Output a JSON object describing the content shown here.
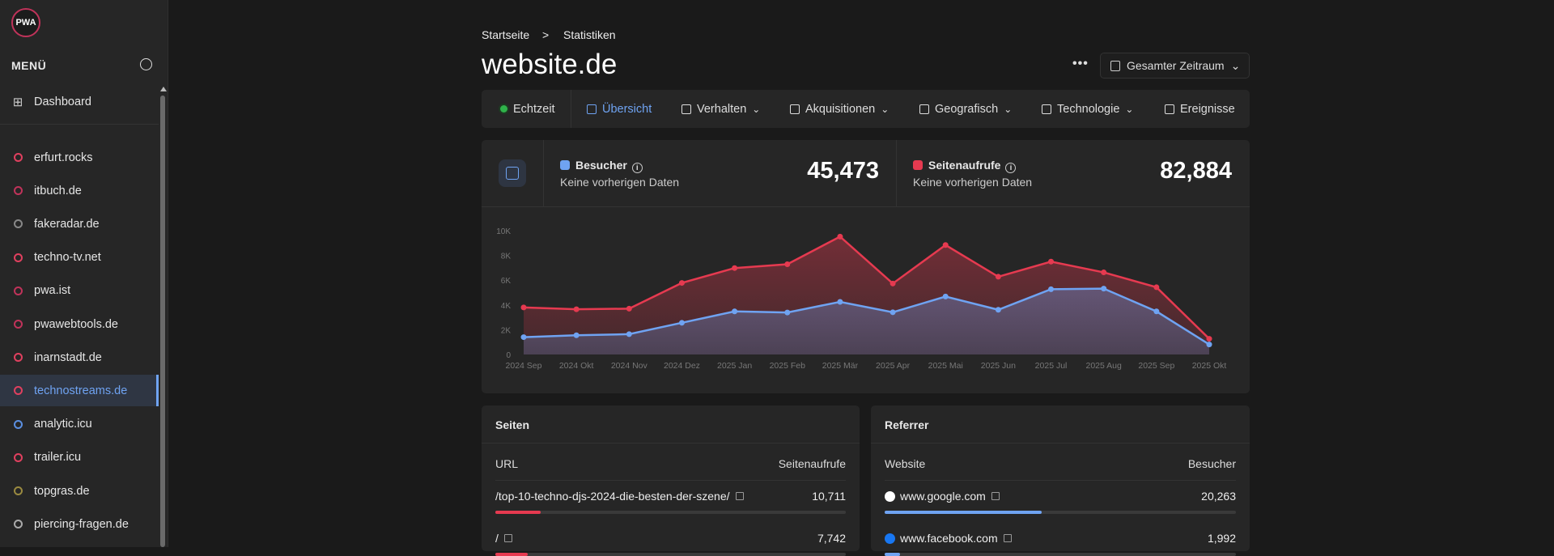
{
  "sidebar": {
    "logo": "PWA.ist",
    "menu_title": "MENÜ",
    "dashboard": "Dashboard",
    "sites": [
      {
        "label": "erfurt.rocks",
        "icon": "pin-icon",
        "color": "#e0405f"
      },
      {
        "label": "itbuch.de",
        "icon": "io-icon",
        "color": "#c0335a"
      },
      {
        "label": "fakeradar.de",
        "icon": "play-circle-icon",
        "color": "#888888"
      },
      {
        "label": "techno-tv.net",
        "icon": "heart-arrow-icon",
        "color": "#e0405f"
      },
      {
        "label": "pwa.ist",
        "icon": "pw-icon",
        "color": "#c0335a"
      },
      {
        "label": "pwawebtools.de",
        "icon": "pw-icon",
        "color": "#c0335a"
      },
      {
        "label": "inarnstadt.de",
        "icon": "pin-icon",
        "color": "#e0405f"
      },
      {
        "label": "technostreams.de",
        "icon": "ts-icon",
        "color": "#e0405f",
        "active": true
      },
      {
        "label": "analytic.icu",
        "icon": "bar-chart-icon",
        "color": "#5b8fe0"
      },
      {
        "label": "trailer.icu",
        "icon": "flag-icon",
        "color": "#e0405f"
      },
      {
        "label": "topgras.de",
        "icon": "grass-icon",
        "color": "#9a8a40"
      },
      {
        "label": "piercing-fragen.de",
        "icon": "ring-icon",
        "color": "#aaaaaa"
      }
    ]
  },
  "breadcrumb": {
    "home": "Startseite",
    "sep": ">",
    "current": "Statistiken"
  },
  "title": "website.de",
  "toolbar": {
    "more": "•••",
    "range": "Gesamter Zeitraum"
  },
  "nav": [
    "Echtzeit",
    "Übersicht",
    "Verhalten",
    "Akquisitionen",
    "Geografisch",
    "Technologie",
    "Ereignisse"
  ],
  "stats": {
    "visitors": {
      "label": "Besucher",
      "sub": "Keine vorherigen Daten",
      "value": "45,473",
      "color": "#6fa3f2"
    },
    "pageviews": {
      "label": "Seitenaufrufe",
      "sub": "Keine vorherigen Daten",
      "value": "82,884",
      "color": "#e63a50"
    }
  },
  "chart_data": {
    "type": "area",
    "categories": [
      "2024 Sep",
      "2024 Okt",
      "2024 Nov",
      "2024 Dez",
      "2025 Jan",
      "2025 Feb",
      "2025 Mär",
      "2025 Apr",
      "2025 Mai",
      "2025 Jun",
      "2025 Jul",
      "2025 Aug",
      "2025 Sep",
      "2025 Okt"
    ],
    "yticks": [
      "0",
      "2K",
      "4K",
      "6K",
      "8K",
      "10K"
    ],
    "ylim": [
      0,
      10000
    ],
    "series": [
      {
        "name": "Seitenaufrufe",
        "color": "#e63a50",
        "values": [
          3800,
          3650,
          3700,
          5780,
          6980,
          7290,
          9520,
          5730,
          8840,
          6280,
          7500,
          6630,
          5430,
          1270
        ]
      },
      {
        "name": "Besucher",
        "color": "#6fa3f2",
        "values": [
          1400,
          1550,
          1640,
          2560,
          3480,
          3390,
          4250,
          3410,
          4680,
          3610,
          5270,
          5320,
          3480,
          810
        ]
      }
    ]
  },
  "pages": {
    "title": "Seiten",
    "col1": "URL",
    "col2": "Seitenaufrufe",
    "rows": [
      {
        "label": "/top-10-techno-djs-2024-die-besten-der-szene/",
        "value": "10,711",
        "pct": 12.9
      },
      {
        "label": "/",
        "value": "7,742",
        "pct": 9.3
      }
    ]
  },
  "referrer": {
    "title": "Referrer",
    "col1": "Website",
    "col2": "Besucher",
    "rows": [
      {
        "label": "www.google.com",
        "value": "20,263",
        "pct": 44.6,
        "icon": "google-icon"
      },
      {
        "label": "www.facebook.com",
        "value": "1,992",
        "pct": 4.4,
        "icon": "facebook-icon"
      }
    ]
  }
}
